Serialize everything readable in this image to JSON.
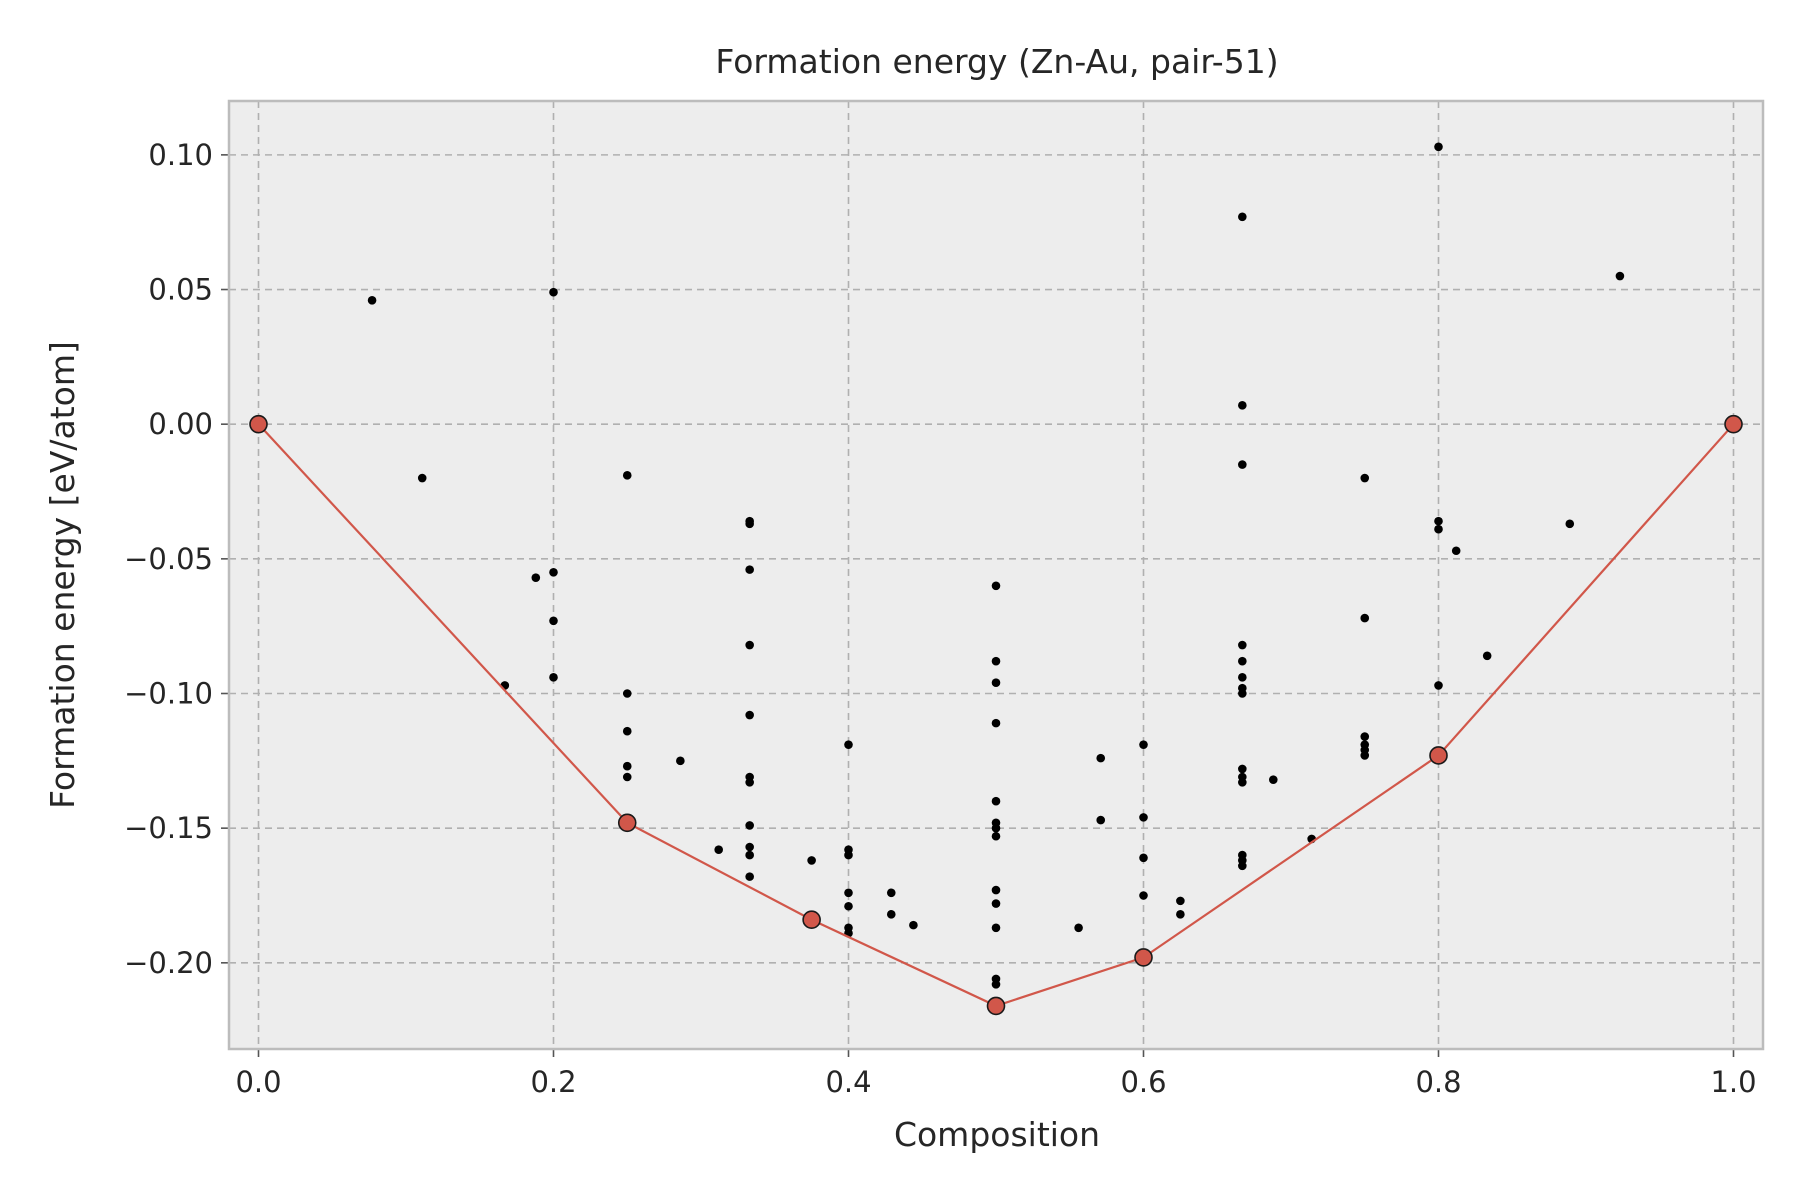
{
  "chart_data": {
    "type": "scatter",
    "title": "Formation energy (Zn-Au, pair-51)",
    "xlabel": "Composition",
    "ylabel": "Formation energy [eV/atom]",
    "xlim": [
      -0.02,
      1.02
    ],
    "ylim": [
      -0.232,
      0.12
    ],
    "xticks": [
      0.0,
      0.2,
      0.4,
      0.6,
      0.8,
      1.0
    ],
    "xtick_labels": [
      "0.0",
      "0.2",
      "0.4",
      "0.6",
      "0.8",
      "1.0"
    ],
    "yticks": [
      0.1,
      0.05,
      0.0,
      -0.05,
      -0.1,
      -0.15,
      -0.2
    ],
    "ytick_labels": [
      "0.10",
      "0.05",
      "0.00",
      "−0.05",
      "−0.10",
      "−0.15",
      "−0.20"
    ],
    "grid": true,
    "colors": {
      "background": "#ededed",
      "hull": "#d1574a",
      "points": "#000000"
    },
    "series": [
      {
        "kind": "scatter",
        "points": [
          [
            0.077,
            0.046
          ],
          [
            0.111,
            -0.02
          ],
          [
            0.167,
            -0.097
          ],
          [
            0.188,
            -0.057
          ],
          [
            0.2,
            0.049
          ],
          [
            0.2,
            -0.055
          ],
          [
            0.2,
            -0.073
          ],
          [
            0.2,
            -0.094
          ],
          [
            0.25,
            -0.019
          ],
          [
            0.25,
            -0.1
          ],
          [
            0.25,
            -0.114
          ],
          [
            0.25,
            -0.127
          ],
          [
            0.25,
            -0.131
          ],
          [
            0.286,
            -0.125
          ],
          [
            0.312,
            -0.158
          ],
          [
            0.333,
            -0.036
          ],
          [
            0.333,
            -0.037
          ],
          [
            0.333,
            -0.054
          ],
          [
            0.333,
            -0.082
          ],
          [
            0.333,
            -0.108
          ],
          [
            0.333,
            -0.131
          ],
          [
            0.333,
            -0.133
          ],
          [
            0.333,
            -0.149
          ],
          [
            0.333,
            -0.157
          ],
          [
            0.333,
            -0.16
          ],
          [
            0.333,
            -0.168
          ],
          [
            0.375,
            -0.162
          ],
          [
            0.4,
            -0.119
          ],
          [
            0.4,
            -0.158
          ],
          [
            0.4,
            -0.16
          ],
          [
            0.4,
            -0.174
          ],
          [
            0.4,
            -0.179
          ],
          [
            0.4,
            -0.187
          ],
          [
            0.4,
            -0.189
          ],
          [
            0.429,
            -0.174
          ],
          [
            0.429,
            -0.182
          ],
          [
            0.444,
            -0.186
          ],
          [
            0.5,
            -0.06
          ],
          [
            0.5,
            -0.088
          ],
          [
            0.5,
            -0.096
          ],
          [
            0.5,
            -0.111
          ],
          [
            0.5,
            -0.14
          ],
          [
            0.5,
            -0.148
          ],
          [
            0.5,
            -0.15
          ],
          [
            0.5,
            -0.153
          ],
          [
            0.5,
            -0.173
          ],
          [
            0.5,
            -0.178
          ],
          [
            0.5,
            -0.187
          ],
          [
            0.5,
            -0.206
          ],
          [
            0.5,
            -0.208
          ],
          [
            0.556,
            -0.187
          ],
          [
            0.571,
            -0.124
          ],
          [
            0.571,
            -0.147
          ],
          [
            0.6,
            -0.119
          ],
          [
            0.6,
            -0.146
          ],
          [
            0.6,
            -0.161
          ],
          [
            0.6,
            -0.175
          ],
          [
            0.625,
            -0.177
          ],
          [
            0.625,
            -0.182
          ],
          [
            0.667,
            0.077
          ],
          [
            0.667,
            0.007
          ],
          [
            0.667,
            -0.015
          ],
          [
            0.667,
            -0.082
          ],
          [
            0.667,
            -0.088
          ],
          [
            0.667,
            -0.094
          ],
          [
            0.667,
            -0.098
          ],
          [
            0.667,
            -0.1
          ],
          [
            0.667,
            -0.128
          ],
          [
            0.667,
            -0.131
          ],
          [
            0.667,
            -0.133
          ],
          [
            0.667,
            -0.16
          ],
          [
            0.667,
            -0.162
          ],
          [
            0.667,
            -0.164
          ],
          [
            0.688,
            -0.132
          ],
          [
            0.714,
            -0.154
          ],
          [
            0.75,
            -0.02
          ],
          [
            0.75,
            -0.072
          ],
          [
            0.75,
            -0.116
          ],
          [
            0.75,
            -0.119
          ],
          [
            0.75,
            -0.121
          ],
          [
            0.75,
            -0.123
          ],
          [
            0.8,
            0.103
          ],
          [
            0.8,
            -0.036
          ],
          [
            0.8,
            -0.039
          ],
          [
            0.8,
            -0.097
          ],
          [
            0.812,
            -0.047
          ],
          [
            0.833,
            -0.086
          ],
          [
            0.889,
            -0.037
          ],
          [
            0.923,
            0.055
          ]
        ]
      },
      {
        "kind": "hull",
        "points": [
          [
            0.0,
            0.0
          ],
          [
            0.25,
            -0.148
          ],
          [
            0.375,
            -0.184
          ],
          [
            0.5,
            -0.216
          ],
          [
            0.6,
            -0.198
          ],
          [
            0.8,
            -0.123
          ],
          [
            1.0,
            0.0
          ]
        ]
      }
    ]
  }
}
